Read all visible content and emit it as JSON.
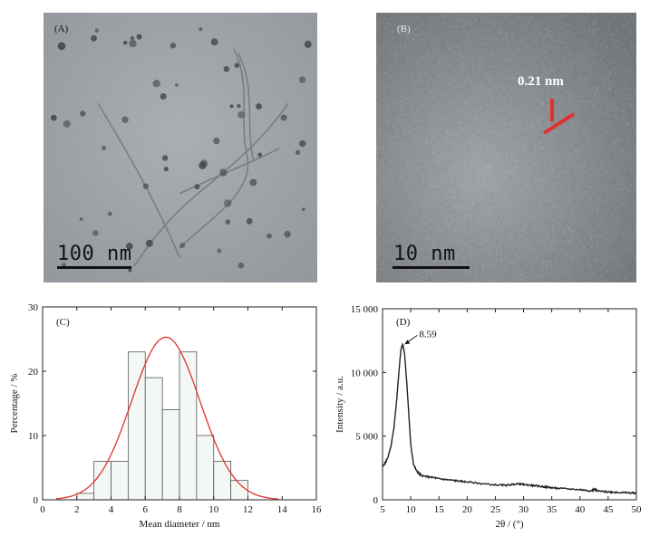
{
  "panel_a": {
    "label": "(A)",
    "scale_bar_text": "100 nm"
  },
  "panel_b": {
    "label": "(B)",
    "scale_bar_text": "10 nm",
    "lattice_annotation": "0.21 nm",
    "annotation_color": "#e03030"
  },
  "chart_data": [
    {
      "type": "bar",
      "panel_label": "(C)",
      "title": "",
      "xlabel": "Mean diameter / nm",
      "ylabel": "Percentage / %",
      "bin_edges": [
        2,
        3,
        4,
        5,
        6,
        7,
        8,
        9,
        10,
        11,
        12
      ],
      "values": [
        1,
        6,
        6,
        23,
        19,
        14,
        23,
        10,
        6,
        3
      ],
      "fit_curve": {
        "type": "gaussian",
        "mean": 7.2,
        "sigma": 2.0,
        "peak": 25.3,
        "color": "#e0312f"
      },
      "xlim": [
        0,
        16
      ],
      "ylim": [
        0,
        30
      ],
      "xticks": [
        0,
        2,
        4,
        6,
        8,
        10,
        12,
        14,
        16
      ],
      "yticks": [
        0,
        10,
        20,
        30
      ],
      "bar_fill": "#f4f8f4"
    },
    {
      "type": "line",
      "panel_label": "(D)",
      "title": "",
      "xlabel": "2θ / (°)",
      "ylabel": "Intensity / a.u.",
      "peak_annotation": {
        "x": 8.59,
        "y": 12200,
        "label": "8.59"
      },
      "x": [
        5,
        5.5,
        6,
        6.5,
        7,
        7.5,
        8,
        8.3,
        8.59,
        8.9,
        9.3,
        9.7,
        10,
        10.5,
        11,
        11.5,
        12,
        13,
        14,
        15,
        16,
        17,
        18,
        19,
        20,
        22,
        24,
        26,
        27,
        28,
        29,
        30,
        31,
        32,
        33,
        34,
        35,
        36,
        38,
        40,
        41,
        42,
        42.5,
        43,
        44,
        45,
        46,
        47,
        48,
        49,
        50
      ],
      "y": [
        2600,
        2900,
        3400,
        4200,
        5600,
        7800,
        10600,
        11900,
        12200,
        11500,
        9200,
        6400,
        4300,
        2800,
        2300,
        2050,
        1900,
        1800,
        1750,
        1650,
        1600,
        1550,
        1500,
        1450,
        1400,
        1300,
        1200,
        1150,
        1150,
        1200,
        1250,
        1200,
        1150,
        1100,
        1050,
        1000,
        950,
        900,
        850,
        800,
        750,
        700,
        850,
        700,
        650,
        620,
        600,
        580,
        560,
        540,
        520
      ],
      "xlim": [
        5,
        50
      ],
      "ylim": [
        0,
        15000
      ],
      "xticks": [
        5,
        10,
        15,
        20,
        25,
        30,
        35,
        40,
        45,
        50
      ],
      "yticks": [
        0,
        5000,
        10000,
        15000
      ],
      "ytick_labels": [
        "0",
        "5 000",
        "10 000",
        "15 000"
      ],
      "line_color": "#222222"
    }
  ]
}
